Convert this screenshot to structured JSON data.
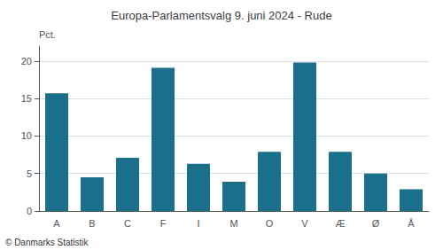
{
  "chart_data": {
    "type": "bar",
    "title": "Europa-Parlamentsvalg 9. juni 2024 - Rude",
    "categories": [
      "A",
      "B",
      "C",
      "F",
      "I",
      "M",
      "O",
      "V",
      "Æ",
      "Ø",
      "Å"
    ],
    "values": [
      15.7,
      4.5,
      7.1,
      19.1,
      6.3,
      3.9,
      7.9,
      19.8,
      7.9,
      5.0,
      2.9
    ],
    "color": "#1a6f8a",
    "ylabel": "Pct.",
    "ylim": [
      0,
      22
    ],
    "yticks": [
      0,
      5,
      10,
      15,
      20
    ],
    "grid": true,
    "footer": "© Danmarks Statistik"
  }
}
